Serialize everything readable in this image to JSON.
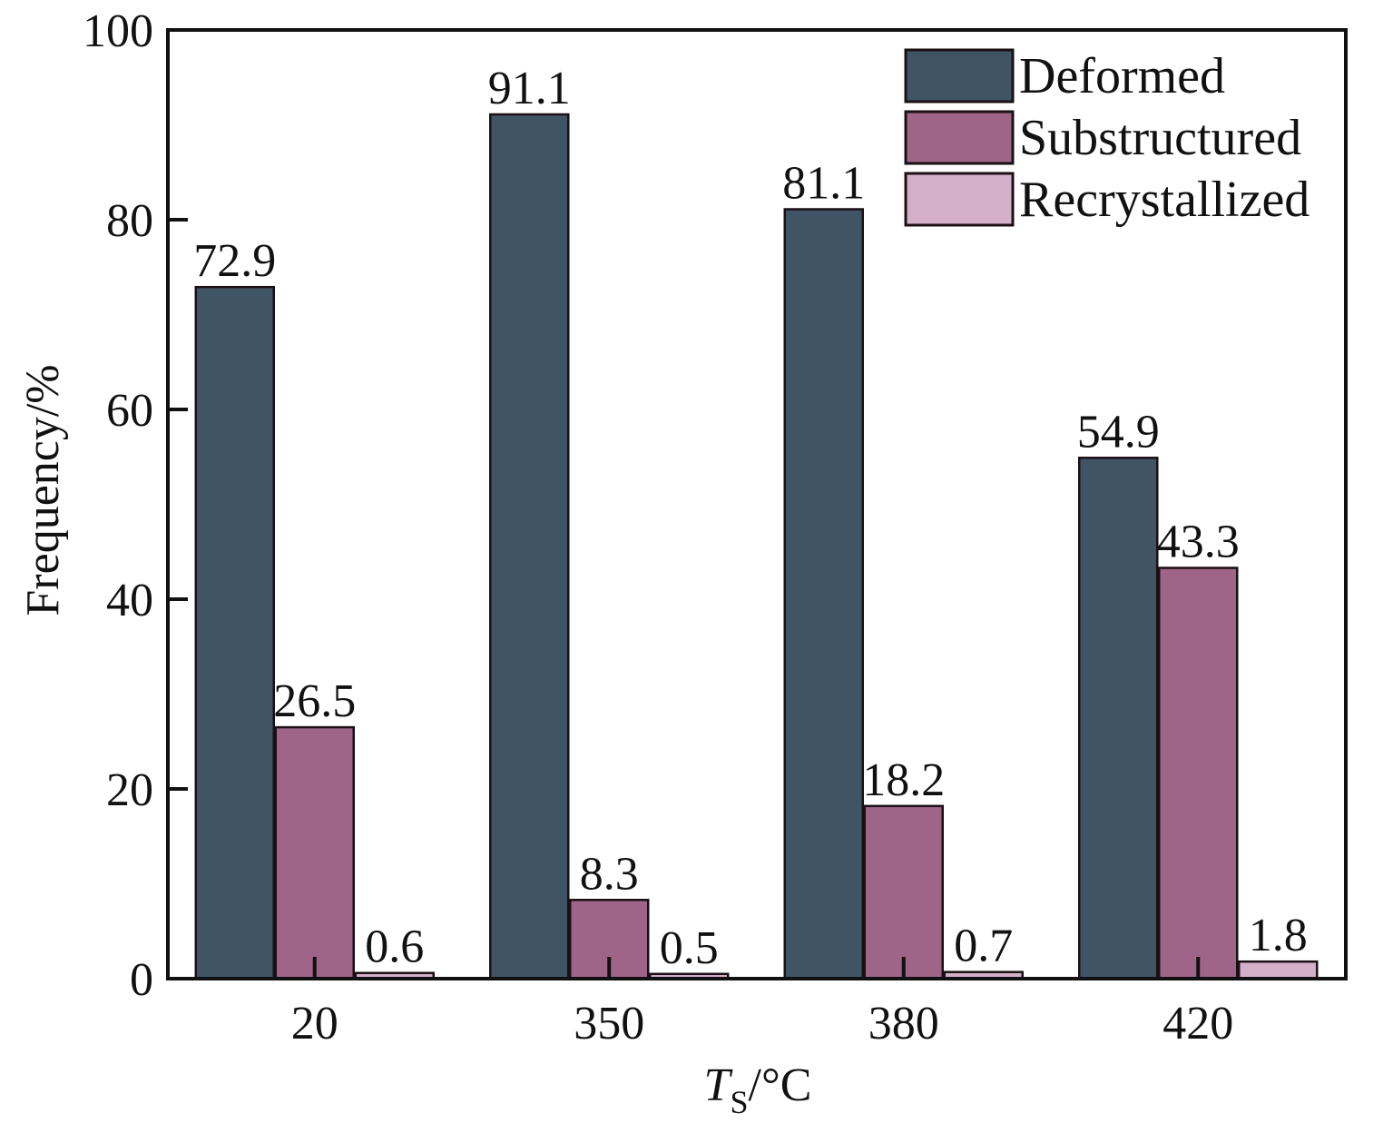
{
  "chart_data": {
    "type": "bar",
    "title": "",
    "xlabel_italic": "T",
    "xlabel_sub": "S",
    "xlabel_rest": "/°C",
    "ylabel": "Frequency/%",
    "ylim": [
      0,
      100
    ],
    "yticks": [
      0,
      20,
      40,
      60,
      80,
      100
    ],
    "categories": [
      "20",
      "350",
      "380",
      "420"
    ],
    "series": [
      {
        "name": "Deformed",
        "color": "#3f5566",
        "values": [
          72.9,
          91.1,
          81.1,
          54.9
        ],
        "labels": [
          "72.9",
          "91.1",
          "81.1",
          "54.9"
        ]
      },
      {
        "name": "Substructured",
        "color": "#9e6589",
        "values": [
          26.5,
          8.3,
          18.2,
          43.3
        ],
        "labels": [
          "26.5",
          "8.3",
          "18.2",
          "43.3"
        ]
      },
      {
        "name": "Recrystallized",
        "color": "#d4afc9",
        "values": [
          0.6,
          0.5,
          0.7,
          1.8
        ],
        "labels": [
          "0.6",
          "0.5",
          "0.7",
          "1.8"
        ]
      }
    ],
    "legend": "top-right",
    "grid": false
  }
}
